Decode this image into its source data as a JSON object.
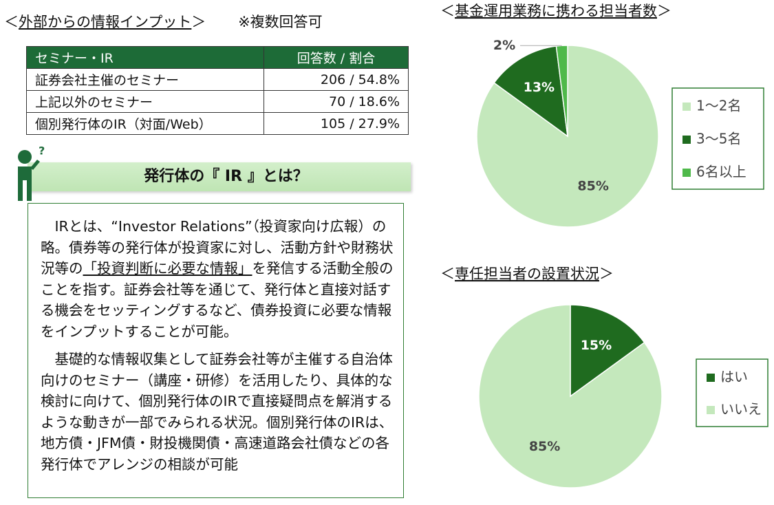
{
  "info_input": {
    "title": [
      "＜",
      "外部からの情報インプット",
      "＞"
    ],
    "note": "※複数回答可",
    "table": {
      "header": [
        "セミナー・IR",
        "回答数 / 割合"
      ],
      "rows": [
        [
          "証券会社主催のセミナー",
          "206 / 54.8%"
        ],
        [
          "上記以外のセミナー",
          "70 / 18.6%"
        ],
        [
          "個別発行体のIR（対面/Web）",
          "105 / 27.9%"
        ]
      ]
    }
  },
  "ir_box": {
    "title": "発行体の『 IR 』とは？",
    "paragraphs": [
      [
        "IRとは、“Investor Relations”（投資家向け広報）の略。債券等の発行体が投資家に対し、活動方針や財務状況等の",
        "「投資判断に必要な情報」",
        "を発信する活動全般のことを指す。証券会社等を通じて、発行体と直接対話する機会をセッティングするなど、債券投資に必要な情報をインプットすることが可能。"
      ],
      [
        "基礎的な情報収集として証券会社等が主催する自治体向けのセミナー（講座・研修）を活用したり、具体的な検討に向けて、個別発行体のIRで直接疑問点を解消するような動きが一部でみられる状況。個別発行体のIRは、地方債・JFM債・財投機関債・高速道路会社債などの各発行体でアレンジの相談が可能"
      ]
    ]
  },
  "chart_data": [
    {
      "type": "pie",
      "title": [
        "＜",
        "基金運用業務に携わる担当者数",
        "＞"
      ],
      "categories": [
        "1～2名",
        "3～5名",
        "6名以上"
      ],
      "values": [
        85,
        13,
        2
      ],
      "value_labels": [
        "85%",
        "13%",
        "2%"
      ],
      "colors": [
        "#c4e8bc",
        "#1f6b1f",
        "#4fb94a"
      ],
      "legend": "right"
    },
    {
      "type": "pie",
      "title": [
        "＜",
        "専任担当者の設置状況",
        "＞"
      ],
      "categories": [
        "はい",
        "いいえ"
      ],
      "values": [
        15,
        85
      ],
      "value_labels": [
        "15%",
        "85%"
      ],
      "colors": [
        "#1f6b1f",
        "#c4e8bc"
      ],
      "legend": "right"
    }
  ]
}
